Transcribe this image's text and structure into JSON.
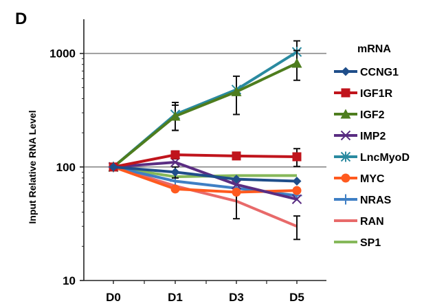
{
  "panel_label": "D",
  "chart_data": {
    "type": "line",
    "yscale": "log",
    "ylim": [
      10,
      2000
    ],
    "ylabel": "Input Relative RNA Level",
    "xlabel": "",
    "categories": [
      "D0",
      "D1",
      "D3",
      "D5"
    ],
    "y_ticks": [
      10,
      100,
      1000
    ],
    "y_tick_labels": [
      "10",
      "100",
      "1000"
    ],
    "gridlines": [
      100,
      1000
    ],
    "legend_title": "mRNA",
    "legend_position": "right",
    "series": [
      {
        "name": "CCNG1",
        "color": "#1f4e8a",
        "marker": "diamond",
        "values": [
          100,
          90,
          78,
          75
        ],
        "errors": [
          0,
          10,
          0,
          0
        ]
      },
      {
        "name": "IGF1R",
        "color": "#c0141c",
        "marker": "square",
        "values": [
          100,
          128,
          125,
          123
        ],
        "errors": [
          0,
          10,
          8,
          22
        ]
      },
      {
        "name": "IGF2",
        "color": "#4e7d1e",
        "marker": "triangle",
        "values": [
          100,
          280,
          460,
          820
        ],
        "errors": [
          0,
          70,
          170,
          240
        ]
      },
      {
        "name": "IMP2",
        "color": "#5a2d82",
        "marker": "x",
        "values": [
          100,
          110,
          70,
          52
        ],
        "errors": [
          0,
          0,
          0,
          0
        ]
      },
      {
        "name": "LncMyoD",
        "color": "#2a8aa0",
        "marker": "star",
        "values": [
          100,
          290,
          480,
          1030
        ],
        "errors": [
          0,
          80,
          0,
          260
        ]
      },
      {
        "name": "MYC",
        "color": "#ff5a1f",
        "marker": "circle",
        "values": [
          100,
          64,
          60,
          62
        ],
        "errors": [
          0,
          0,
          0,
          0
        ]
      },
      {
        "name": "NRAS",
        "color": "#3f7fc4",
        "marker": "plus",
        "values": [
          100,
          75,
          65,
          56
        ],
        "errors": [
          0,
          0,
          0,
          0
        ]
      },
      {
        "name": "RAN",
        "color": "#e86a6a",
        "marker": "none",
        "values": [
          100,
          68,
          50,
          30
        ],
        "errors": [
          0,
          0,
          15,
          7
        ]
      },
      {
        "name": "SP1",
        "color": "#86b85a",
        "marker": "none",
        "values": [
          100,
          82,
          84,
          84
        ],
        "errors": [
          0,
          0,
          0,
          0
        ]
      }
    ]
  }
}
